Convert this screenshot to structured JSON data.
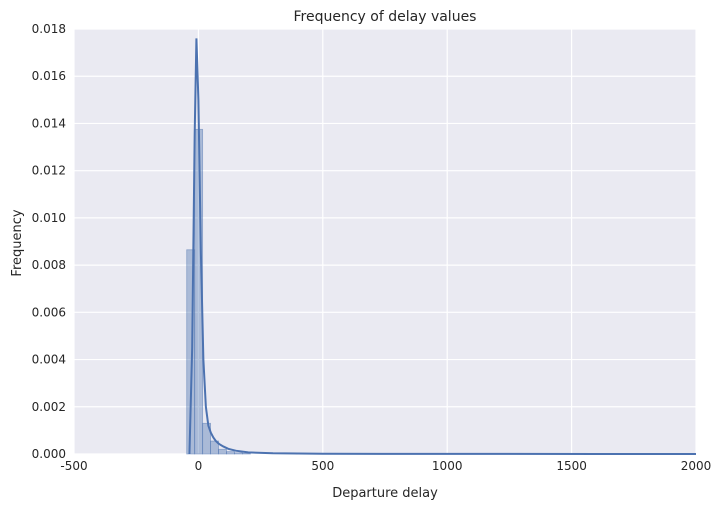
{
  "chart_data": {
    "type": "bar",
    "title": "Frequency of delay values",
    "xlabel": "Departure delay",
    "ylabel": "Frequency",
    "xlim": [
      -500,
      2000
    ],
    "ylim": [
      0,
      0.018
    ],
    "xticks": [
      -500,
      0,
      500,
      1000,
      1500,
      2000
    ],
    "yticks": [
      0.0,
      0.002,
      0.004,
      0.006,
      0.008,
      0.01,
      0.012,
      0.014,
      0.016,
      0.018
    ],
    "ytick_labels": [
      "0.000",
      "0.002",
      "0.004",
      "0.006",
      "0.008",
      "0.010",
      "0.012",
      "0.014",
      "0.016",
      "0.018"
    ],
    "grid": true,
    "histogram": {
      "bin_edges": [
        -47,
        -15,
        17,
        49,
        81,
        113,
        145,
        177,
        209
      ],
      "values": [
        0.00865,
        0.01375,
        0.0013,
        0.00055,
        0.0002,
        0.0001,
        5e-05,
        3e-05
      ]
    },
    "kde_line": {
      "x": [
        -36,
        -25,
        -15,
        -8,
        0,
        10,
        20,
        30,
        40,
        50,
        60,
        70,
        80,
        90,
        100,
        120,
        150,
        200,
        300,
        500,
        800,
        1200,
        1600,
        2000
      ],
      "y": [
        0,
        0.0045,
        0.0135,
        0.0176,
        0.015,
        0.0085,
        0.004,
        0.002,
        0.0012,
        0.0009,
        0.0007,
        0.00055,
        0.00045,
        0.00038,
        0.00032,
        0.00022,
        0.00014,
        7e-05,
        3e-05,
        1e-05,
        5e-06,
        3e-06,
        2e-06,
        1e-06
      ]
    },
    "colors": {
      "background": "#EAEAF2",
      "grid": "#FFFFFF",
      "bar_fill": "#4C72B0",
      "line": "#4C72B0"
    }
  }
}
